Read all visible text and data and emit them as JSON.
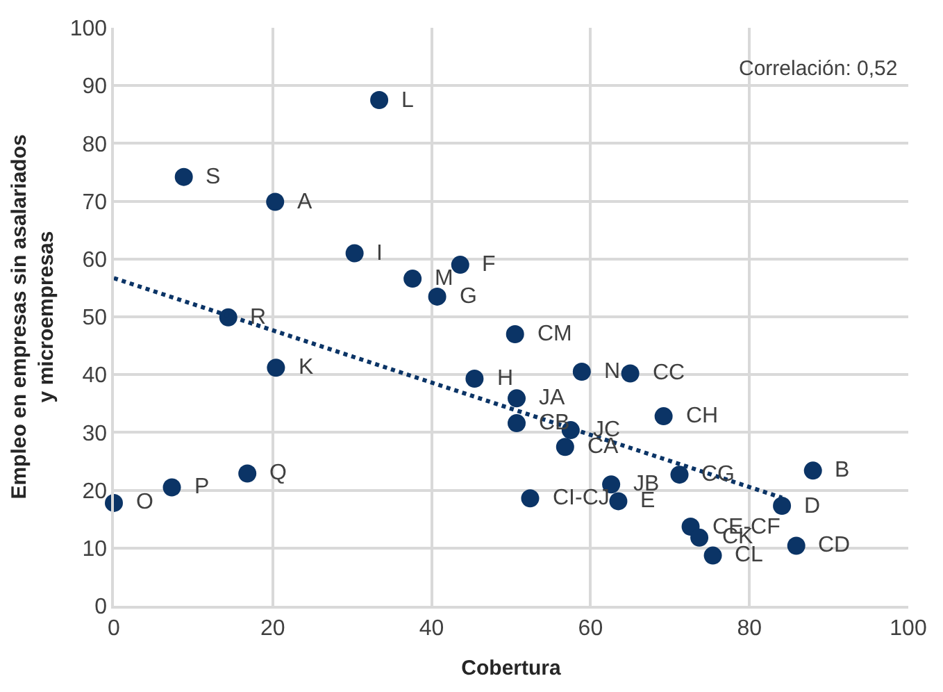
{
  "chart_data": {
    "type": "scatter",
    "xlabel": "Cobertura",
    "ylabel": "Empleo en empresas sin asalariados y microempresas",
    "xlim": [
      0,
      100
    ],
    "xticks": [
      0,
      20,
      40,
      60,
      80,
      100
    ],
    "ylim": [
      0,
      100
    ],
    "yticks": [
      0,
      10,
      20,
      30,
      40,
      50,
      60,
      70,
      80,
      90,
      100
    ],
    "grid": true,
    "marker": "circle",
    "series": [
      {
        "color": "#0b3466",
        "x": [
          33.4,
          8.8,
          20.3,
          30.3,
          37.6,
          43.6,
          40.7,
          14.4,
          50.5,
          20.4,
          45.4,
          58.9,
          65.0,
          50.7,
          50.7,
          69.2,
          57.5,
          56.8,
          71.2,
          88.0,
          84.1,
          85.9,
          72.6,
          73.7,
          75.4,
          52.4,
          62.6,
          63.5,
          0,
          7.3,
          16.8
        ],
        "values": [
          87.5,
          74.2,
          69.9,
          61.0,
          56.6,
          59.0,
          53.5,
          49.9,
          47.0,
          41.2,
          39.3,
          40.5,
          40.2,
          35.9,
          31.6,
          32.8,
          30.4,
          27.5,
          22.7,
          23.4,
          17.3,
          10.4,
          13.7,
          11.8,
          8.7,
          18.6,
          21.0,
          18.1,
          17.8,
          20.5,
          22.9
        ]
      },
      {
        "type": "line",
        "color": "#0b3466",
        "line_style": "dotted",
        "marker": "none",
        "x": [
          0,
          84.1
        ],
        "values": [
          56.7,
          18.7
        ]
      }
    ],
    "annotations": [
      "Correlación: 0,52",
      {
        "text": "L",
        "x": 33.4,
        "y": 87.5
      },
      {
        "text": "S",
        "x": 8.8,
        "y": 74.2
      },
      {
        "text": "A",
        "x": 20.3,
        "y": 69.9
      },
      {
        "text": "I",
        "x": 30.3,
        "y": 61.0
      },
      {
        "text": "M",
        "x": 37.6,
        "y": 56.6
      },
      {
        "text": "F",
        "x": 43.6,
        "y": 59.0
      },
      {
        "text": "G",
        "x": 40.7,
        "y": 53.5
      },
      {
        "text": "R",
        "x": 14.4,
        "y": 49.9
      },
      {
        "text": "CM",
        "x": 50.5,
        "y": 47.0
      },
      {
        "text": "K",
        "x": 20.4,
        "y": 41.2
      },
      {
        "text": "H",
        "x": 45.4,
        "y": 39.3
      },
      {
        "text": "N",
        "x": 58.9,
        "y": 40.5
      },
      {
        "text": "CC",
        "x": 65.0,
        "y": 40.2
      },
      {
        "text": "JA",
        "x": 50.7,
        "y": 35.9
      },
      {
        "text": "CB",
        "x": 50.7,
        "y": 31.6
      },
      {
        "text": "CH",
        "x": 69.2,
        "y": 32.8
      },
      {
        "text": "JC",
        "x": 57.5,
        "y": 30.4
      },
      {
        "text": "CA",
        "x": 56.8,
        "y": 27.5
      },
      {
        "text": "CG",
        "x": 71.2,
        "y": 22.7
      },
      {
        "text": "B",
        "x": 88.0,
        "y": 23.4
      },
      {
        "text": "D",
        "x": 84.1,
        "y": 17.3
      },
      {
        "text": "CD",
        "x": 85.9,
        "y": 10.4
      },
      {
        "text": "CE-CF",
        "x": 72.6,
        "y": 13.7
      },
      {
        "text": "CK",
        "x": 73.7,
        "y": 11.8
      },
      {
        "text": "CL",
        "x": 75.4,
        "y": 8.7
      },
      {
        "text": "CI-CJ",
        "x": 52.4,
        "y": 18.6
      },
      {
        "text": "JB",
        "x": 62.6,
        "y": 21.0
      },
      {
        "text": "E",
        "x": 63.5,
        "y": 18.1
      },
      {
        "text": "O",
        "x": 0,
        "y": 17.8
      },
      {
        "text": "P",
        "x": 7.3,
        "y": 20.5
      },
      {
        "text": "Q",
        "x": 16.8,
        "y": 22.9
      }
    ]
  }
}
